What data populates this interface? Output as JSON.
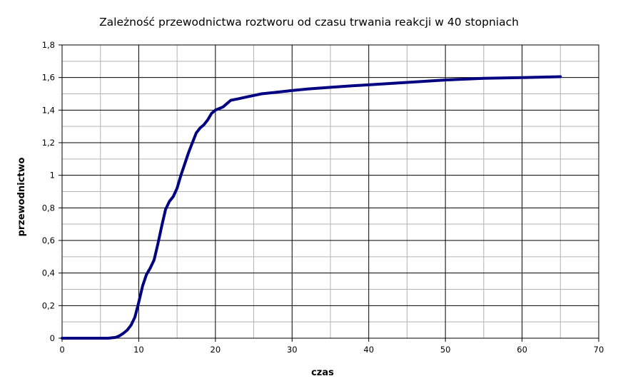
{
  "chart_data": {
    "type": "line",
    "title": "Zależność przewodnictwa roztworu od czasu trwania reakcji w 40 stopniach",
    "xlabel": "czas",
    "ylabel": "przewodnictwo",
    "xlim": [
      0,
      70
    ],
    "ylim": [
      0,
      1.8
    ],
    "x_ticks": [
      "0",
      "10",
      "20",
      "30",
      "40",
      "50",
      "60",
      "70"
    ],
    "y_ticks": [
      "0",
      "0,2",
      "0,4",
      "0,6",
      "0,8",
      "1",
      "1,2",
      "1,4",
      "1,6",
      "1,8"
    ],
    "grid": true,
    "legend": "none",
    "colors": {
      "series": "#000080",
      "major_grid": "#000000",
      "minor_grid": "#b3b3b3",
      "axis": "#000000"
    },
    "series": [
      {
        "x": [
          0,
          2,
          4,
          6,
          7,
          7.5,
          8,
          8.5,
          9,
          9.5,
          10,
          10.5,
          11,
          11.5,
          12,
          12.5,
          13,
          13.5,
          14,
          14.5,
          15,
          15.5,
          16,
          16.5,
          17,
          17.5,
          18,
          18.5,
          19,
          19.5,
          20,
          20.5,
          21,
          21.5,
          22,
          23,
          24,
          25,
          26,
          27,
          28,
          30,
          32,
          35,
          38,
          40,
          45,
          50,
          55,
          60,
          62,
          65
        ],
        "values": [
          0,
          0,
          0,
          0,
          0.005,
          0.015,
          0.03,
          0.05,
          0.08,
          0.13,
          0.22,
          0.32,
          0.39,
          0.43,
          0.48,
          0.58,
          0.69,
          0.79,
          0.84,
          0.87,
          0.92,
          1.0,
          1.07,
          1.14,
          1.2,
          1.26,
          1.29,
          1.31,
          1.34,
          1.38,
          1.4,
          1.41,
          1.42,
          1.44,
          1.46,
          1.47,
          1.48,
          1.49,
          1.5,
          1.505,
          1.51,
          1.52,
          1.53,
          1.54,
          1.55,
          1.555,
          1.57,
          1.585,
          1.595,
          1.6,
          1.602,
          1.605
        ]
      }
    ]
  }
}
